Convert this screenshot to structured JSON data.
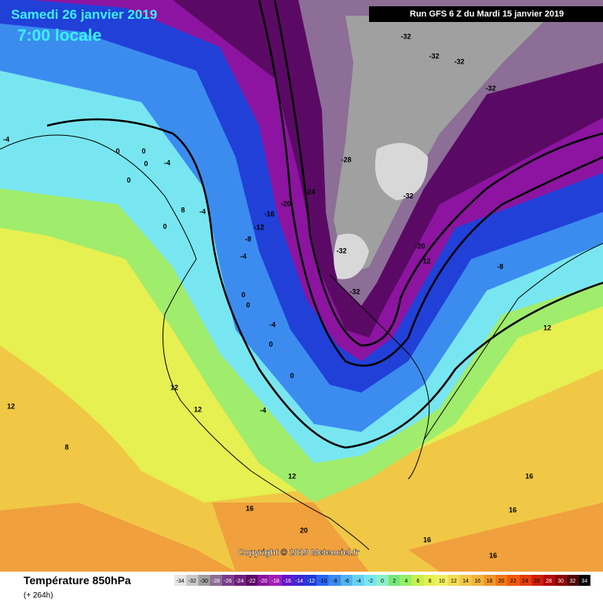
{
  "header": {
    "title": "Samedi 26 janvier 2019",
    "time": "7:00 locale",
    "run": "Run GFS 6 Z du Mardi 15 janvier 2019",
    "copyright": "Copyright © 2019 Meteociel.fr"
  },
  "legend": {
    "title": "Température 850hPa",
    "subtitle": "(+ 264h)",
    "labels": [
      "-34",
      "-32",
      "-30",
      "-28",
      "-26",
      "-24",
      "-22",
      "-20",
      "-18",
      "-16",
      "-14",
      "-12",
      "-10",
      "-8",
      "-6",
      "-4",
      "-2",
      "0",
      "2",
      "4",
      "6",
      "8",
      "10",
      "12",
      "14",
      "16",
      "18",
      "20",
      "22",
      "24",
      "26",
      "28",
      "30",
      "32",
      "34"
    ],
    "colors": [
      "#e6e6e6",
      "#c8c8c8",
      "#a0a0a0",
      "#8c6e96",
      "#7a3c8c",
      "#6e1e7e",
      "#5a0a64",
      "#8c14a0",
      "#a01eb4",
      "#6414c8",
      "#3c28d2",
      "#1e3cdc",
      "#2864f0",
      "#3c8cf0",
      "#50b4f0",
      "#64d2f0",
      "#78e6f0",
      "#8cf0c8",
      "#78e678",
      "#96f064",
      "#c8f050",
      "#e6f050",
      "#f0f064",
      "#f0dc50",
      "#f0c846",
      "#f0b43c",
      "#f09628",
      "#f07814",
      "#f05a0a",
      "#e63c0a",
      "#d21e0a",
      "#b40a0a",
      "#8c0000",
      "#500000",
      "#000000"
    ]
  },
  "contour_labels": [
    "-32",
    "-32",
    "-32",
    "-32",
    "-32",
    "-32",
    "-32",
    "-28",
    "-24",
    "-20",
    "-20",
    "-16",
    "-12",
    "-12",
    "-8",
    "-8",
    "-4",
    "-4",
    "-4",
    "-4",
    "-4",
    "0",
    "0",
    "0",
    "0",
    "0",
    "0",
    "0",
    "0",
    "0",
    "-4",
    "8",
    "8",
    "12",
    "12",
    "12",
    "12",
    "12",
    "16",
    "16",
    "16",
    "16",
    "16",
    "20"
  ]
}
